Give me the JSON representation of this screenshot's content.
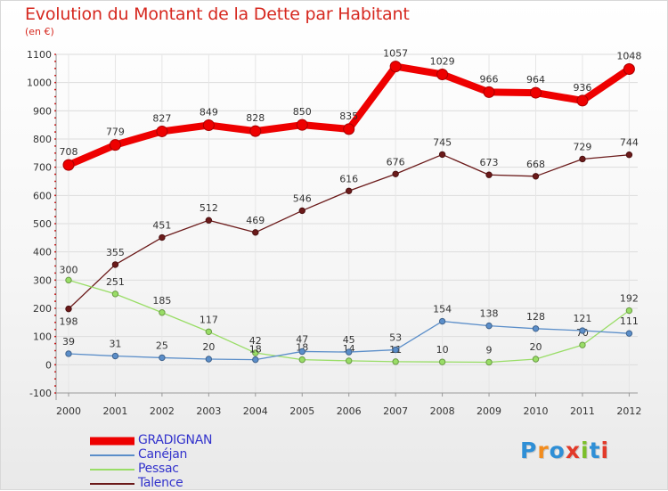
{
  "header": {
    "title": "Evolution du Montant de la Dette par Habitant",
    "subtitle": "(en €)"
  },
  "colors": {
    "title": "#d6281f",
    "axis_dots": "#c40000",
    "GRADIGNAN": "#ee0000",
    "Canéjan": "#5b8ec9",
    "Pessac": "#99dd66",
    "Talence": "#6b1a1a"
  },
  "chart_data": {
    "type": "line",
    "title": "Evolution du Montant de la Dette par Habitant",
    "subtitle": "(en €)",
    "xlabel": "",
    "ylabel": "",
    "ylim": [
      -100,
      1100
    ],
    "yticks": [
      -100,
      0,
      100,
      200,
      300,
      400,
      500,
      600,
      700,
      800,
      900,
      1000,
      1100
    ],
    "grid": true,
    "legend_position": "bottom-left",
    "categories": [
      "2000",
      "2001",
      "2002",
      "2003",
      "2004",
      "2005",
      "2006",
      "2007",
      "2008",
      "2009",
      "2010",
      "2011",
      "2012"
    ],
    "series": [
      {
        "name": "GRADIGNAN",
        "values": [
          708,
          779,
          827,
          849,
          828,
          850,
          835,
          1057,
          1029,
          966,
          964,
          936,
          1048
        ]
      },
      {
        "name": "Canéjan",
        "values": [
          39,
          31,
          25,
          20,
          18,
          47,
          45,
          53,
          154,
          138,
          128,
          121,
          111
        ]
      },
      {
        "name": "Pessac",
        "values": [
          300,
          251,
          185,
          117,
          42,
          18,
          14,
          11,
          10,
          9,
          20,
          70,
          192
        ]
      },
      {
        "name": "Talence",
        "values": [
          198,
          355,
          451,
          512,
          469,
          546,
          616,
          676,
          745,
          673,
          668,
          729,
          744
        ]
      }
    ]
  },
  "logo": {
    "text": "Proxiti",
    "colors": [
      "#2f8fd6",
      "#f28c1e",
      "#2f8fd6",
      "#e23a2a",
      "#7bbf2a",
      "#2f8fd6",
      "#e23a2a"
    ]
  }
}
